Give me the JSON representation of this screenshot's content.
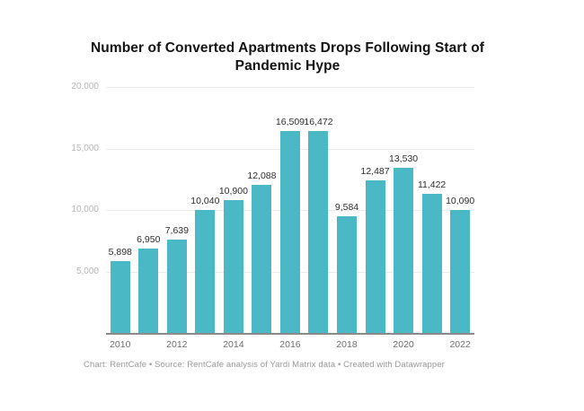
{
  "chart": {
    "title": "Number of Converted Apartments Drops Following Start of Pandemic Hype",
    "footer": "Chart: RentCafe • Source: RentCafe analysis of Yardi Matrix data • Created with Datawrapper"
  },
  "chart_data": {
    "type": "bar",
    "title": "Number of Converted Apartments Drops Following Start of Pandemic Hype",
    "categories": [
      "2010",
      "2011",
      "2012",
      "2013",
      "2014",
      "2015",
      "2016",
      "2017",
      "2018",
      "2019",
      "2020",
      "2021",
      "2022"
    ],
    "values": [
      5898,
      6950,
      7639,
      10040,
      10900,
      12088,
      16509,
      16472,
      9584,
      12487,
      13530,
      11422,
      10090
    ],
    "value_labels": [
      "5,898",
      "6,950",
      "7,639",
      "10,040",
      "10,900",
      "12,088",
      "16,509",
      "16,472",
      "9,584",
      "12,487",
      "13,530",
      "11,422",
      "10,090"
    ],
    "x_tick_labels_shown": [
      "2010",
      "2012",
      "2014",
      "2016",
      "2018",
      "2020",
      "2022"
    ],
    "y_ticks": [
      5000,
      10000,
      15000,
      20000
    ],
    "y_tick_labels": [
      "5,000",
      "10,000",
      "15,000",
      "20,000"
    ],
    "ylim": [
      0,
      20000
    ],
    "xlabel": "",
    "ylabel": "",
    "grid": true,
    "legend": false,
    "value_labels_visible": true,
    "bar_color": "#4bb9c5",
    "gridline_color": "#ebebeb",
    "baseline_color": "#8a8a8a",
    "source_note": "Chart: RentCafe • Source: RentCafe analysis of Yardi Matrix data • Created with Datawrapper"
  }
}
